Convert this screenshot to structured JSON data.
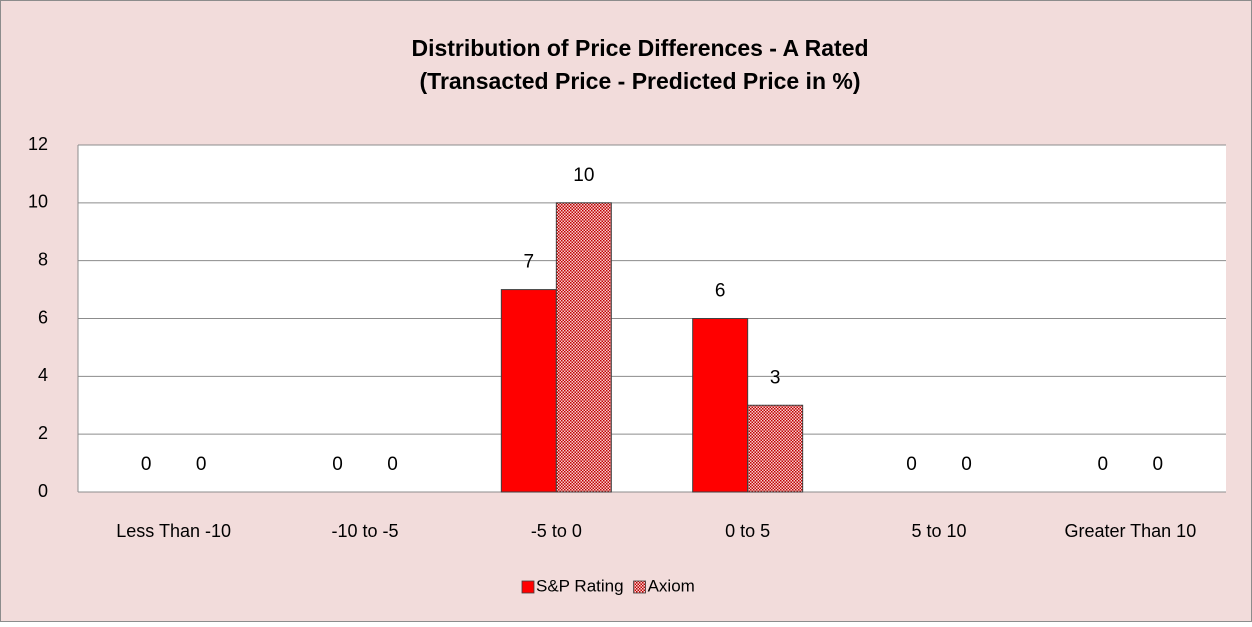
{
  "chart_data": {
    "type": "bar",
    "title": "Distribution of Price Differences - A Rated",
    "subtitle": "(Transacted Price - Predicted Price in %)",
    "categories": [
      "Less Than -10",
      "-10 to -5",
      "-5 to 0",
      "0 to 5",
      "5 to 10",
      "Greater Than 10"
    ],
    "series": [
      {
        "name": "S&P Rating",
        "color": "#ff0000",
        "pattern": "solid",
        "values": [
          0,
          0,
          7,
          6,
          0,
          0
        ]
      },
      {
        "name": "Axiom",
        "color": "#c00000",
        "pattern": "dots",
        "values": [
          0,
          0,
          10,
          3,
          0,
          0
        ]
      }
    ],
    "ylim": [
      0,
      12
    ],
    "yticks": [
      0,
      2,
      4,
      6,
      8,
      10,
      12
    ],
    "grid": true,
    "legend": "bottom"
  }
}
